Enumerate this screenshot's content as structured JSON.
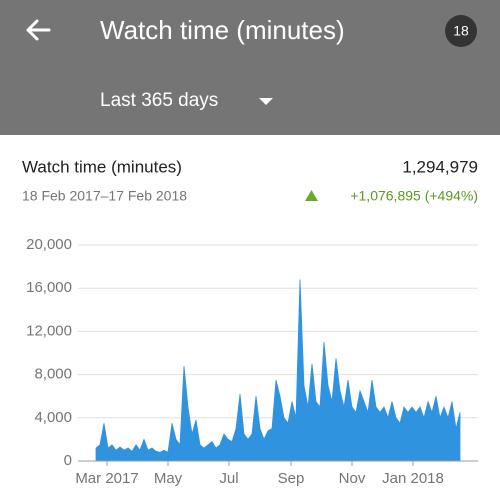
{
  "header": {
    "title": "Watch time (minutes)",
    "badge": "18",
    "range_selector": "Last 365 days"
  },
  "summary": {
    "title": "Watch time (minutes)",
    "total": "1,294,979",
    "date_range": "18 Feb 2017–17 Feb 2018",
    "change": "+1,076,895 (+494%)"
  },
  "chart_data": {
    "type": "area",
    "color": "#2f93e0",
    "grid": true,
    "x": [
      0,
      4,
      8,
      12,
      16,
      20,
      24,
      28,
      32,
      36,
      40,
      44,
      48,
      52,
      56,
      60,
      64,
      68,
      72,
      76,
      80,
      84,
      88,
      92,
      96,
      100,
      104,
      108,
      112,
      116,
      120,
      124,
      128,
      132,
      136,
      140,
      144,
      148,
      152,
      156,
      160,
      164,
      168,
      172,
      176,
      180,
      184,
      188,
      192,
      196,
      200,
      204,
      208,
      212,
      216,
      220,
      224,
      228,
      232,
      236,
      240,
      244,
      248,
      252,
      256,
      260,
      264,
      268,
      272,
      276,
      280,
      284,
      288,
      292,
      296,
      300,
      304,
      308,
      312,
      316,
      320,
      324,
      328,
      332,
      336,
      340,
      344,
      348,
      352,
      356,
      360,
      364
    ],
    "values": [
      1200,
      1500,
      3500,
      1200,
      1500,
      1000,
      1300,
      1000,
      1200,
      900,
      1500,
      1000,
      2000,
      1000,
      1200,
      900,
      800,
      1000,
      800,
      3500,
      2000,
      1500,
      8800,
      5000,
      2500,
      3800,
      1500,
      1200,
      1500,
      1800,
      1200,
      1500,
      2500,
      2000,
      1800,
      3000,
      6200,
      2500,
      2000,
      2500,
      6000,
      3000,
      2000,
      2800,
      3000,
      7500,
      6000,
      4000,
      3500,
      5500,
      4000,
      16800,
      7000,
      5000,
      9000,
      5500,
      5000,
      11000,
      7000,
      5500,
      9500,
      6500,
      5000,
      7500,
      5000,
      4500,
      6500,
      5500,
      4500,
      7500,
      5000,
      4500,
      5000,
      4000,
      5500,
      4000,
      3500,
      5000,
      4500,
      5000,
      4500,
      5000,
      4000,
      5500,
      4500,
      6000,
      4000,
      5000,
      4000,
      5500,
      3000,
      4500
    ],
    "xlim": [
      0,
      364
    ],
    "xticks": [
      {
        "value": 11,
        "label": "Mar 2017"
      },
      {
        "value": 72,
        "label": "May"
      },
      {
        "value": 133,
        "label": "Jul"
      },
      {
        "value": 195,
        "label": "Sep"
      },
      {
        "value": 256,
        "label": "Nov"
      },
      {
        "value": 317,
        "label": "Jan 2018"
      }
    ],
    "ylim": [
      0,
      20000
    ],
    "yticks": [
      0,
      {
        "value": 4000,
        "label": "4,000"
      },
      {
        "value": 8000,
        "label": "8,000"
      },
      {
        "value": 12000,
        "label": "12,000"
      },
      {
        "value": 16000,
        "label": "16,000"
      },
      {
        "value": 20000,
        "label": "20,000"
      }
    ]
  }
}
